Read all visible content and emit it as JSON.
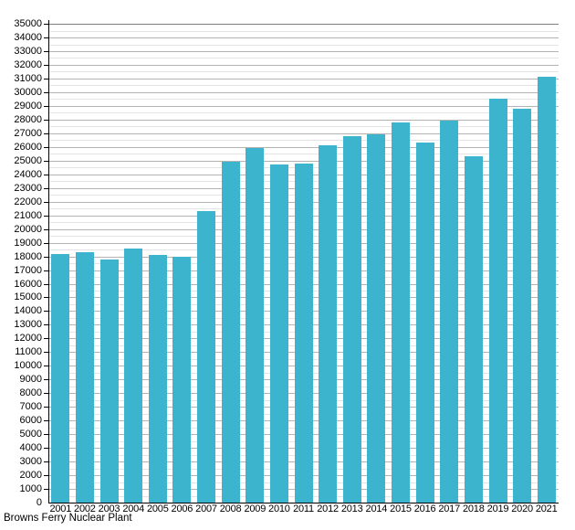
{
  "caption": "Browns Ferry Nuclear Plant",
  "colors": {
    "bar": "#3cb4cd",
    "grid_major": "#b3b3b3",
    "grid_minor": "#e4e4e4",
    "grid_top": "#808080",
    "axis": "#000000",
    "background": "#ffffff"
  },
  "chart_data": {
    "type": "bar",
    "title": "",
    "xlabel": "",
    "ylabel": "",
    "caption": "Browns Ferry Nuclear Plant",
    "categories": [
      "2001",
      "2002",
      "2003",
      "2004",
      "2005",
      "2006",
      "2007",
      "2008",
      "2009",
      "2010",
      "2011",
      "2012",
      "2013",
      "2014",
      "2015",
      "2016",
      "2017",
      "2018",
      "2019",
      "2020",
      "2021"
    ],
    "values": [
      18200,
      18300,
      17800,
      18600,
      18100,
      18000,
      21300,
      24900,
      25900,
      24700,
      24800,
      26100,
      26800,
      26900,
      27800,
      26300,
      27900,
      25300,
      29500,
      28800,
      31100
    ],
    "ylim": [
      0,
      35000
    ],
    "y_major_step": 1000,
    "y_minor_step": 500,
    "y_tick_labels": [
      "0",
      "1000",
      "2000",
      "3000",
      "4000",
      "5000",
      "6000",
      "7000",
      "8000",
      "9000",
      "10000",
      "11000",
      "12000",
      "13000",
      "14000",
      "15000",
      "16000",
      "17000",
      "18000",
      "19000",
      "20000",
      "21000",
      "22000",
      "23000",
      "24000",
      "25000",
      "26000",
      "27000",
      "28000",
      "29000",
      "30000",
      "31000",
      "32000",
      "33000",
      "34000",
      "35000"
    ],
    "grid": true,
    "legend": false
  }
}
